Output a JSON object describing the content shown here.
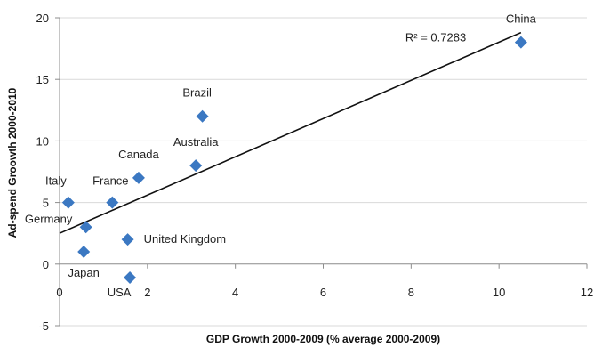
{
  "chart_data": {
    "type": "scatter",
    "title": "",
    "xlabel": "GDP Growth 2000-2009 (% average 2000-2009)",
    "ylabel": "Ad-spend Groowth 2000-2010",
    "xlim": [
      0,
      12
    ],
    "ylim": [
      -5,
      20
    ],
    "x_ticks": [
      0,
      2,
      4,
      6,
      8,
      10,
      12
    ],
    "y_ticks": [
      -5,
      0,
      5,
      10,
      15,
      20
    ],
    "x_tick_labels": [
      "0",
      "2",
      "4",
      "6",
      "8",
      "10",
      "12"
    ],
    "y_tick_labels": [
      "-5",
      "0",
      "5",
      "10",
      "15",
      "20"
    ],
    "grid": "horizontal",
    "marker_color": "#3B78C2",
    "points": [
      {
        "label": "Italy",
        "x": 0.2,
        "y": 5.0
      },
      {
        "label": "Germany",
        "x": 0.6,
        "y": 3.0
      },
      {
        "label": "Japan",
        "x": 0.55,
        "y": 1.0
      },
      {
        "label": "France",
        "x": 1.2,
        "y": 5.0
      },
      {
        "label": "Canada",
        "x": 1.8,
        "y": 7.0
      },
      {
        "label": "United Kingdom",
        "x": 1.55,
        "y": 2.0
      },
      {
        "label": "USA",
        "x": 1.6,
        "y": -1.1
      },
      {
        "label": "Australia",
        "x": 3.1,
        "y": 8.0
      },
      {
        "label": "Brazil",
        "x": 3.25,
        "y": 12.0
      },
      {
        "label": "China",
        "x": 10.5,
        "y": 18.0
      }
    ],
    "trendline": {
      "x": [
        0,
        10.5
      ],
      "y": [
        2.5,
        18.8
      ],
      "label": "R² = 0.7283"
    }
  }
}
